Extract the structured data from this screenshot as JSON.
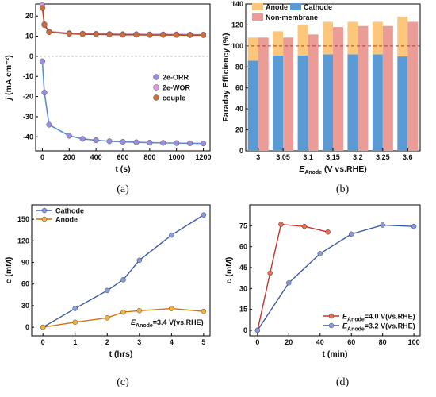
{
  "chart_data": [
    {
      "panel": "(a)",
      "type": "line",
      "xlabel": "t (s)",
      "ylabel_main": "j",
      "ylabel_unit": "(mA cm⁻²)",
      "xlim": [
        -50,
        1250
      ],
      "ylim": [
        -47,
        26
      ],
      "xticks": [
        0,
        200,
        400,
        600,
        800,
        1000,
        1200
      ],
      "yticks": [
        -40,
        -30,
        -20,
        -10,
        0,
        10,
        20
      ],
      "legend_position": "right-middle",
      "series": [
        {
          "name": "2e-ORR",
          "color": "#5b8ec7",
          "marker_color": "#9b8ee0",
          "x": [
            0,
            15,
            50,
            200,
            300,
            400,
            500,
            600,
            700,
            800,
            900,
            1000,
            1100,
            1200
          ],
          "y": [
            -2.5,
            -18,
            -34,
            -39.5,
            -41,
            -41.7,
            -42.2,
            -42.5,
            -42.7,
            -42.9,
            -43,
            -43.1,
            -43.2,
            -43.3
          ]
        },
        {
          "name": "2e-WOR",
          "color": "#c27bb2",
          "marker_color": "#d99ad6",
          "x": [
            0,
            15,
            50,
            200,
            300,
            400,
            500,
            600,
            700,
            800,
            900,
            1000,
            1100,
            1200
          ],
          "y": [
            25.5,
            16,
            12.3,
            11.5,
            11.3,
            11.2,
            11.1,
            11,
            11,
            10.9,
            10.9,
            10.9,
            10.8,
            10.8
          ]
        },
        {
          "name": "couple",
          "color": "#b34a2a",
          "marker_color": "#d26b3c",
          "x": [
            0,
            15,
            50,
            200,
            300,
            400,
            500,
            600,
            700,
            800,
            900,
            1000,
            1100,
            1200
          ],
          "y": [
            24,
            15.5,
            12,
            11.2,
            11,
            10.9,
            10.8,
            10.7,
            10.7,
            10.6,
            10.6,
            10.6,
            10.5,
            10.5
          ]
        }
      ]
    },
    {
      "panel": "(b)",
      "type": "bar",
      "xlabel_main": "E",
      "xlabel_sub": "Anode",
      "xlabel_rest": " (V vs.RHE)",
      "ylabel": "Faraday Efficiency (%)",
      "ylim": [
        0,
        140
      ],
      "yticks": [
        0,
        20,
        40,
        60,
        80,
        100,
        120,
        140
      ],
      "categories": [
        "3",
        "3.05",
        "3.1",
        "3.15",
        "3.2",
        "3.25",
        "3.6"
      ],
      "reference_line": 100,
      "legend_position": "top",
      "series": [
        {
          "name": "Cathode",
          "color": "#5b9bd5",
          "values": [
            86,
            91,
            91,
            92,
            92,
            92,
            90
          ]
        },
        {
          "name": "Anode",
          "color": "#fcc77a",
          "values": [
            22,
            23,
            29,
            31,
            31,
            31,
            38
          ]
        },
        {
          "name": "Non-membrane",
          "color": "#eb9c96",
          "values": [
            108,
            108,
            111,
            118,
            119,
            119,
            123
          ]
        }
      ]
    },
    {
      "panel": "(c)",
      "type": "line",
      "xlabel": "t (hrs)",
      "ylabel": "c (mM)",
      "xlim": [
        -0.35,
        5.2
      ],
      "ylim": [
        -12,
        170
      ],
      "xticks": [
        0,
        1,
        2,
        3,
        4,
        5
      ],
      "yticks": [
        0,
        30,
        60,
        90,
        120,
        150
      ],
      "legend_position": "top-left",
      "annotation_main": "E",
      "annotation_sub": "Anode",
      "annotation_rest": "=3.4 V(vs.RHE)",
      "series": [
        {
          "name": "Cathode",
          "color": "#3b5ca6",
          "marker_color": "#8a9be0",
          "x": [
            0,
            1,
            2,
            2.5,
            3,
            4,
            5
          ],
          "y": [
            0,
            26,
            51,
            66,
            93,
            128,
            156
          ]
        },
        {
          "name": "Anode",
          "color": "#d0750e",
          "marker_color": "#f0b440",
          "x": [
            0,
            1,
            2,
            2.5,
            3,
            4,
            5
          ],
          "y": [
            0,
            7,
            13,
            21,
            23,
            26,
            22
          ]
        }
      ]
    },
    {
      "panel": "(d)",
      "type": "line",
      "xlabel": "t (min)",
      "ylabel": "c (mM)",
      "xlim": [
        -5,
        104
      ],
      "ylim": [
        -4,
        90
      ],
      "xticks": [
        0,
        20,
        40,
        60,
        80,
        100
      ],
      "yticks": [
        0,
        15,
        30,
        45,
        60,
        75
      ],
      "legend_position": "bottom-right",
      "series": [
        {
          "name_main": "E",
          "name_sub": "Anode",
          "name_rest": "=4.0 V(vs.RHE)",
          "color": "#c8322a",
          "marker_color": "#e46f55",
          "x": [
            0,
            8,
            15,
            30,
            45
          ],
          "y": [
            0,
            41,
            76,
            74.5,
            70.5
          ]
        },
        {
          "name_main": "E",
          "name_sub": "Anode",
          "name_rest": "=3.2 V(vs.RHE)",
          "color": "#3b5ca6",
          "marker_color": "#8a9be0",
          "x": [
            0,
            20,
            40,
            60,
            80,
            100
          ],
          "y": [
            0,
            34,
            55,
            69,
            75.5,
            74.5
          ]
        }
      ]
    }
  ]
}
